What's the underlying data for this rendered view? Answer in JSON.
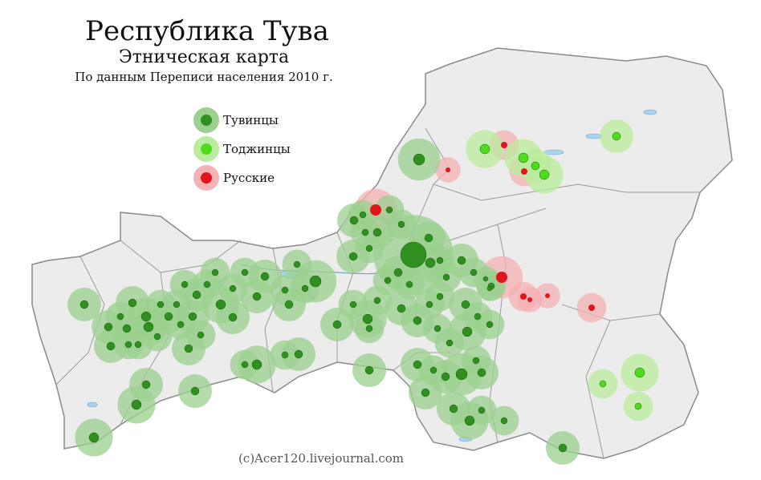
{
  "header": {
    "title": "Республика Тува",
    "subtitle": "Этническая карта",
    "source": "По данным Переписи населения 2010 г."
  },
  "legend": [
    {
      "label": "Тувинцы",
      "color": "#2f8f1f",
      "halo": "#9bd08f"
    },
    {
      "label": "Тоджинцы",
      "color": "#4fdc1c",
      "halo": "#b9ec9c"
    },
    {
      "label": "Русские",
      "color": "#e0161c",
      "halo": "#f6b2b4"
    }
  ],
  "credit": "(c)Acer120.livejournal.com"
}
